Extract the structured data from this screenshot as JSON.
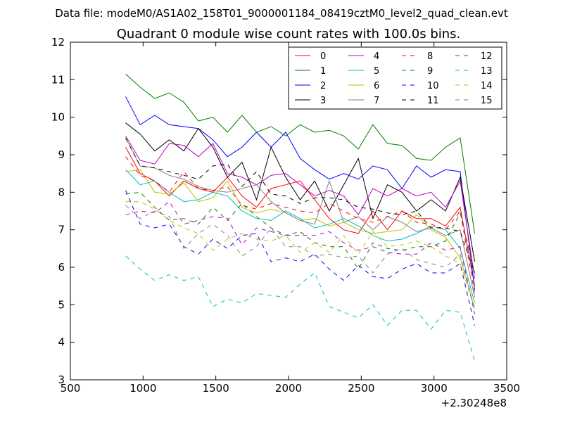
{
  "chart_data": {
    "type": "line",
    "suptitle": "Data file: modeM0/AS1A02_158T01_9000001184_08419cztM0_level2_quad_clean.evt",
    "title": "Quadrant 0 module wise count rates with 100.0s bins.",
    "xlabel": "",
    "ylabel": "",
    "x_offset_label": "+2.30248e8",
    "xlim": [
      500,
      3500
    ],
    "ylim": [
      3,
      12
    ],
    "xticks": [
      "500",
      "1000",
      "1500",
      "2000",
      "2500",
      "3000",
      "3500"
    ],
    "yticks": [
      "3",
      "4",
      "5",
      "6",
      "7",
      "8",
      "9",
      "10",
      "11",
      "12"
    ],
    "legend_location": "top-right",
    "legend_columns": 4,
    "x": [
      880,
      980,
      1080,
      1180,
      1280,
      1380,
      1480,
      1580,
      1680,
      1780,
      1880,
      1980,
      2080,
      2180,
      2280,
      2380,
      2480,
      2580,
      2680,
      2780,
      2880,
      2980,
      3080,
      3180,
      3280
    ],
    "series": [
      {
        "name": "0",
        "color": "#ff0000",
        "dash": "solid",
        "values": [
          9.2,
          8.5,
          8.3,
          7.9,
          8.3,
          8.1,
          8.0,
          8.4,
          7.9,
          7.6,
          8.1,
          8.2,
          8.3,
          7.8,
          7.3,
          7.0,
          6.9,
          7.5,
          7.0,
          7.5,
          7.3,
          7.3,
          7.1,
          7.6,
          5.5
        ]
      },
      {
        "name": "1",
        "color": "#008000",
        "dash": "solid",
        "values": [
          11.15,
          10.8,
          10.5,
          10.65,
          10.4,
          9.9,
          10.0,
          9.6,
          10.05,
          9.6,
          9.75,
          9.5,
          9.8,
          9.6,
          9.65,
          9.5,
          9.15,
          9.8,
          9.3,
          9.25,
          8.9,
          8.85,
          9.2,
          9.45,
          6.9
        ]
      },
      {
        "name": "2",
        "color": "#0000ff",
        "dash": "solid",
        "values": [
          10.55,
          9.8,
          10.05,
          9.8,
          9.75,
          9.7,
          9.4,
          8.95,
          9.2,
          9.6,
          9.2,
          9.6,
          8.9,
          8.6,
          8.35,
          8.5,
          8.35,
          8.7,
          8.6,
          8.1,
          8.7,
          8.4,
          8.6,
          8.55,
          5.4
        ]
      },
      {
        "name": "3",
        "color": "#000000",
        "dash": "solid",
        "values": [
          9.85,
          9.55,
          9.1,
          9.4,
          9.1,
          9.7,
          9.2,
          8.4,
          8.8,
          7.8,
          9.2,
          8.4,
          7.8,
          8.3,
          7.5,
          8.2,
          8.9,
          7.3,
          8.2,
          8.0,
          7.5,
          7.8,
          7.5,
          8.4,
          6.15
        ]
      },
      {
        "name": "4",
        "color": "#bf00bf",
        "dash": "solid",
        "values": [
          9.5,
          8.85,
          8.75,
          9.3,
          9.25,
          8.95,
          9.3,
          8.5,
          8.4,
          8.2,
          8.45,
          8.5,
          8.2,
          7.9,
          8.05,
          7.9,
          7.4,
          8.1,
          7.9,
          8.1,
          7.9,
          8.0,
          7.6,
          8.3,
          5.7
        ]
      },
      {
        "name": "5",
        "color": "#00bfbf",
        "dash": "solid",
        "values": [
          8.6,
          8.2,
          8.3,
          8.0,
          7.75,
          7.8,
          8.0,
          7.9,
          7.5,
          7.3,
          7.25,
          7.5,
          7.3,
          7.05,
          7.15,
          7.3,
          7.1,
          6.85,
          6.7,
          6.75,
          6.9,
          7.1,
          7.0,
          6.5,
          5.05
        ]
      },
      {
        "name": "6",
        "color": "#bfbf00",
        "dash": "solid",
        "values": [
          8.55,
          8.6,
          8.0,
          7.95,
          8.25,
          7.75,
          7.85,
          8.3,
          7.6,
          7.45,
          7.55,
          7.45,
          7.25,
          7.3,
          7.1,
          7.2,
          7.0,
          6.9,
          6.95,
          7.0,
          7.4,
          7.0,
          6.8,
          6.25,
          4.9
        ]
      },
      {
        "name": "7",
        "color": "#808080",
        "dash": "solid",
        "values": [
          9.45,
          8.7,
          8.65,
          8.45,
          8.35,
          8.15,
          8.05,
          8.0,
          8.1,
          8.2,
          7.75,
          7.45,
          7.25,
          7.15,
          8.3,
          7.2,
          7.35,
          7.0,
          7.35,
          7.2,
          6.95,
          7.05,
          6.85,
          7.0,
          5.2
        ]
      },
      {
        "name": "8",
        "color": "#ff0000",
        "dash": "dashed",
        "values": [
          8.95,
          8.45,
          8.3,
          8.0,
          8.55,
          8.1,
          8.05,
          8.15,
          7.65,
          7.55,
          7.7,
          7.6,
          7.5,
          7.45,
          7.7,
          7.5,
          7.3,
          7.2,
          7.35,
          7.5,
          7.2,
          7.15,
          7.0,
          7.5,
          5.3
        ]
      },
      {
        "name": "9",
        "color": "#008000",
        "dash": "dashed",
        "values": [
          7.95,
          8.0,
          7.6,
          7.25,
          7.3,
          7.15,
          7.6,
          7.25,
          7.7,
          7.35,
          7.05,
          6.85,
          6.95,
          6.65,
          6.55,
          6.55,
          5.95,
          6.65,
          6.5,
          6.45,
          6.55,
          6.55,
          6.7,
          7.45,
          5.85
        ]
      },
      {
        "name": "10",
        "color": "#0000ff",
        "dash": "dashed",
        "values": [
          8.05,
          7.15,
          7.05,
          7.15,
          6.55,
          6.35,
          6.75,
          6.5,
          6.85,
          6.9,
          6.15,
          6.25,
          6.15,
          6.35,
          5.95,
          5.65,
          6.05,
          5.75,
          5.7,
          5.95,
          6.1,
          5.85,
          5.85,
          6.1,
          4.45
        ]
      },
      {
        "name": "11",
        "color": "#000000",
        "dash": "dashed",
        "values": [
          9.45,
          8.7,
          8.65,
          8.55,
          8.45,
          8.35,
          8.7,
          8.75,
          8.15,
          8.55,
          7.95,
          7.9,
          7.7,
          7.85,
          7.85,
          7.8,
          7.6,
          7.55,
          7.45,
          7.4,
          7.5,
          7.05,
          7.05,
          6.95,
          5.85
        ]
      },
      {
        "name": "12",
        "color": "#bf00bf",
        "dash": "dashed",
        "values": [
          7.4,
          7.5,
          7.45,
          7.75,
          7.15,
          7.25,
          7.35,
          7.3,
          6.6,
          7.05,
          6.95,
          6.85,
          6.85,
          6.85,
          6.95,
          6.65,
          6.45,
          6.55,
          6.4,
          6.35,
          6.35,
          6.65,
          6.45,
          6.55,
          4.75
        ]
      },
      {
        "name": "13",
        "color": "#00bfbf",
        "dash": "dashed",
        "values": [
          6.3,
          5.95,
          5.65,
          5.8,
          5.65,
          5.75,
          4.95,
          5.15,
          5.05,
          5.3,
          5.25,
          5.2,
          5.55,
          5.85,
          4.95,
          4.8,
          4.65,
          5.0,
          4.45,
          4.85,
          4.85,
          4.35,
          4.85,
          4.8,
          3.5
        ]
      },
      {
        "name": "14",
        "color": "#bfbf00",
        "dash": "dashed",
        "values": [
          7.75,
          7.75,
          7.55,
          7.25,
          7.05,
          6.9,
          6.45,
          6.75,
          6.9,
          6.75,
          6.7,
          6.85,
          6.4,
          6.65,
          6.4,
          6.85,
          6.35,
          6.95,
          6.55,
          6.6,
          6.7,
          6.55,
          6.3,
          6.1,
          4.9
        ]
      },
      {
        "name": "15",
        "color": "#808080",
        "dash": "dashed",
        "values": [
          7.65,
          7.3,
          7.5,
          7.35,
          6.5,
          6.9,
          7.15,
          6.85,
          6.3,
          6.55,
          7.05,
          6.55,
          6.55,
          6.3,
          6.35,
          6.25,
          6.3,
          5.85,
          6.35,
          6.5,
          6.2,
          6.1,
          6.0,
          6.35,
          4.85
        ]
      }
    ]
  }
}
